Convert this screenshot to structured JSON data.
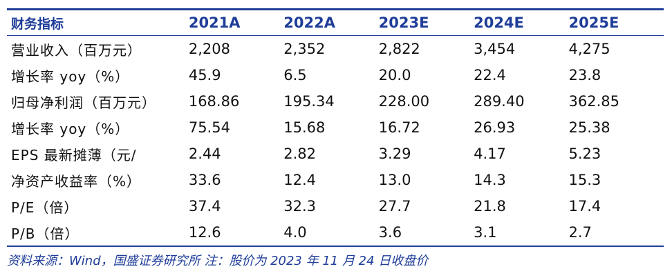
{
  "table": {
    "header": [
      "财务指标",
      "2021A",
      "2022A",
      "2023E",
      "2024E",
      "2025E"
    ],
    "rows": [
      {
        "label": "营业收入（百万元）",
        "values": [
          "2,208",
          "2,352",
          "2,822",
          "3,454",
          "4,275"
        ]
      },
      {
        "label": "增长率 yoy（%）",
        "values": [
          "45.9",
          "6.5",
          "20.0",
          "22.4",
          "23.8"
        ]
      },
      {
        "label": "归母净利润（百万元）",
        "values": [
          "168.86",
          "195.34",
          "228.00",
          "289.40",
          "362.85"
        ]
      },
      {
        "label": "增长率 yoy（%）",
        "values": [
          "75.54",
          "15.68",
          "16.72",
          "26.93",
          "25.38"
        ]
      },
      {
        "label": "EPS 最新摊薄（元/",
        "values": [
          "2.44",
          "2.82",
          "3.29",
          "4.17",
          "5.23"
        ]
      },
      {
        "label": "净资产收益率（%）",
        "values": [
          "33.6",
          "12.4",
          "13.0",
          "14.3",
          "15.3"
        ]
      },
      {
        "label": "P/E（倍）",
        "values": [
          "37.4",
          "32.3",
          "27.7",
          "21.8",
          "17.4"
        ]
      },
      {
        "label": "P/B（倍）",
        "values": [
          "12.6",
          "4.0",
          "3.6",
          "3.1",
          "2.7"
        ]
      }
    ]
  },
  "source_note": "资料来源：Wind，国盛证券研究所 注：股价为 2023 年 11 月 24 日收盘价",
  "colors": {
    "accent": "#1f3d99",
    "text": "#111111"
  }
}
